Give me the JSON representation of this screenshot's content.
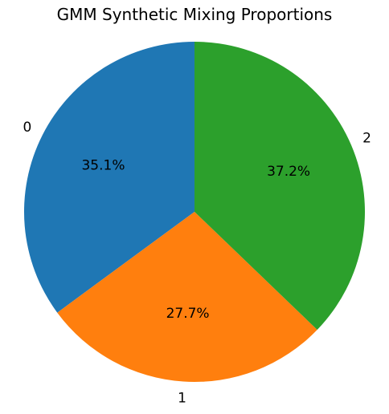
{
  "chart_data": {
    "type": "pie",
    "title": "GMM Synthetic Mixing Proportions",
    "labels": [
      "0",
      "1",
      "2"
    ],
    "values": [
      35.1,
      27.7,
      37.2
    ],
    "value_labels": [
      "35.1%",
      "27.7%",
      "37.2%"
    ],
    "colors": [
      "#1f77b4",
      "#ff7f0e",
      "#2ca02c"
    ],
    "start_angle_deg": 90,
    "direction": "counterclockwise",
    "legend": "none"
  }
}
